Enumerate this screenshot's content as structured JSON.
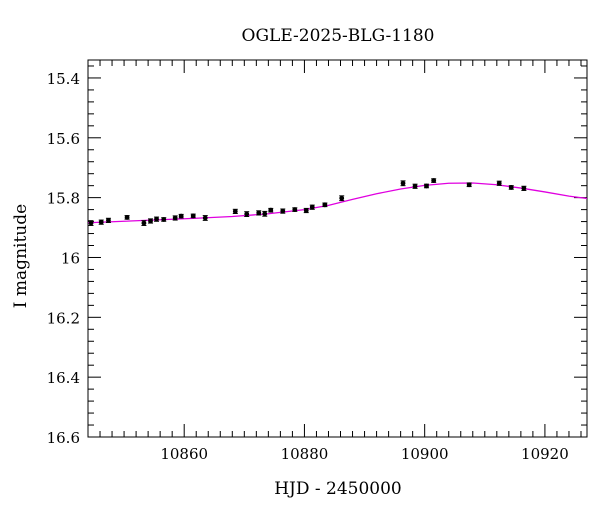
{
  "chart_data": {
    "type": "scatter",
    "title": "OGLE-2025-BLG-1180",
    "xlabel": "HJD - 2450000",
    "ylabel": "I magnitude",
    "xlim": [
      10844,
      10927
    ],
    "ylim": [
      16.6,
      15.34
    ],
    "y_inverted": true,
    "x_ticks": [
      10860,
      10880,
      10900,
      10920
    ],
    "y_ticks": [
      15.4,
      15.6,
      15.8,
      16,
      16.2,
      16.4,
      16.6
    ],
    "grid": false,
    "colors": {
      "points": "#000000",
      "model": "#e000e0"
    },
    "series": [
      {
        "kind": "points",
        "x": [
          10844.5,
          10846.2,
          10847.4,
          10850.5,
          10853.3,
          10854.4,
          10855.4,
          10856.6,
          10858.5,
          10859.5,
          10861.5,
          10863.5,
          10868.5,
          10870.4,
          10872.4,
          10873.4,
          10874.4,
          10876.4,
          10878.4,
          10880.3,
          10881.3,
          10883.4,
          10886.2,
          10896.4,
          10898.4,
          10900.3,
          10901.5,
          10907.4,
          10912.4,
          10914.4,
          10916.5
        ],
        "y": [
          15.885,
          15.882,
          15.876,
          15.866,
          15.885,
          15.878,
          15.872,
          15.873,
          15.868,
          15.862,
          15.861,
          15.868,
          15.846,
          15.855,
          15.851,
          15.854,
          15.842,
          15.845,
          15.84,
          15.843,
          15.832,
          15.824,
          15.802,
          15.752,
          15.762,
          15.761,
          15.743,
          15.757,
          15.752,
          15.766,
          15.769
        ],
        "err": [
          0.008,
          0.007,
          0.007,
          0.006,
          0.008,
          0.007,
          0.007,
          0.006,
          0.007,
          0.006,
          0.006,
          0.008,
          0.007,
          0.008,
          0.007,
          0.008,
          0.006,
          0.007,
          0.006,
          0.007,
          0.007,
          0.006,
          0.008,
          0.008,
          0.007,
          0.006,
          0.006,
          0.006,
          0.007,
          0.006,
          0.007
        ]
      },
      {
        "kind": "line",
        "x": [
          10844,
          10850,
          10856,
          10862,
          10868,
          10874,
          10880,
          10884,
          10888,
          10892,
          10896,
          10900,
          10904,
          10908,
          10912,
          10916,
          10920,
          10924,
          10927
        ],
        "y": [
          15.884,
          15.879,
          15.874,
          15.869,
          15.863,
          15.854,
          15.84,
          15.826,
          15.806,
          15.787,
          15.771,
          15.759,
          15.752,
          15.751,
          15.757,
          15.768,
          15.781,
          15.795,
          15.803
        ]
      }
    ]
  }
}
